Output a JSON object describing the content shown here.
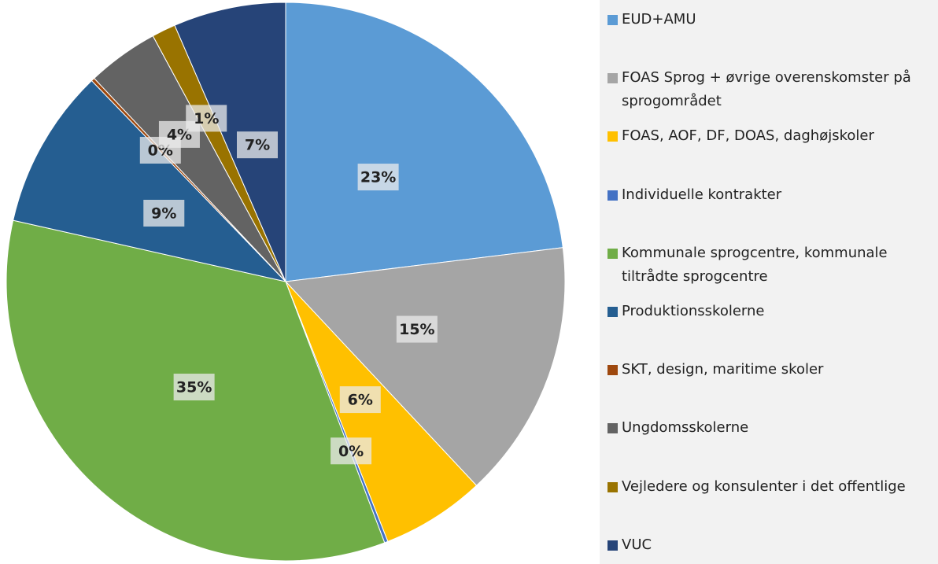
{
  "chart_data": {
    "type": "pie",
    "categories": [
      "EUD+AMU",
      "FOAS Sprog + øvrige overenskomster på sprogområdet",
      "FOAS, AOF, DF, DOAS, daghøjskoler",
      "Individuelle kontrakter",
      "Kommunale sprogcentre, kommunale tiltrådte sprogcentre",
      "Produktionsskolerne",
      "SKT, design, maritime skoler",
      "Ungdomsskolerne",
      "Vejledere og konsulenter i det offentlige",
      "VUC"
    ],
    "values": [
      23.4,
      15.2,
      6.1,
      0.2,
      34.8,
      9.4,
      0.2,
      4.2,
      1.4,
      6.6
    ],
    "value_labels": [
      "23%",
      "15%",
      "6%",
      "0%",
      "35%",
      "9%",
      "0%",
      "4%",
      "1%",
      "7%"
    ],
    "colors": [
      "#5b9bd5",
      "#a5a5a5",
      "#ffc000",
      "#4472c4",
      "#70ad47",
      "#255e91",
      "#9e480e",
      "#636363",
      "#997300",
      "#264478"
    ],
    "legend": "right"
  }
}
